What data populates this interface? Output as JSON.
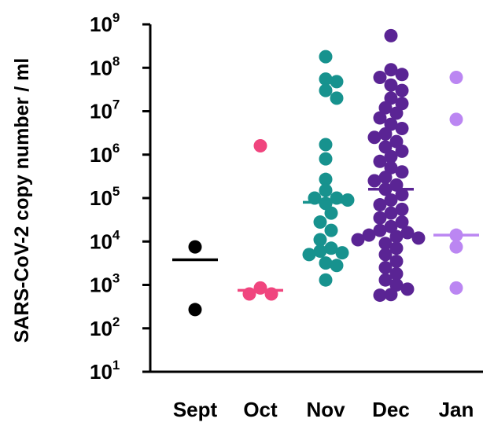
{
  "chart_data": {
    "type": "scatter",
    "title": "",
    "xlabel": "",
    "ylabel": "SARS-CoV-2 copy number / ml",
    "y_scale": "log10",
    "ylim": [
      10,
      1000000000
    ],
    "y_ticks": [
      {
        "value": 10,
        "base": "10",
        "exp": "1"
      },
      {
        "value": 100,
        "base": "10",
        "exp": "2"
      },
      {
        "value": 1000,
        "base": "10",
        "exp": "3"
      },
      {
        "value": 10000,
        "base": "10",
        "exp": "4"
      },
      {
        "value": 100000,
        "base": "10",
        "exp": "5"
      },
      {
        "value": 1000000,
        "base": "10",
        "exp": "6"
      },
      {
        "value": 10000000,
        "base": "10",
        "exp": "7"
      },
      {
        "value": 100000000,
        "base": "10",
        "exp": "8"
      },
      {
        "value": 1000000000,
        "base": "10",
        "exp": "9"
      }
    ],
    "categories": [
      "Sept",
      "Oct",
      "Nov",
      "Dec",
      "Jan"
    ],
    "series": [
      {
        "category": "Sept",
        "color": "#000000",
        "median": 3800,
        "points": [
          7500,
          270
        ]
      },
      {
        "category": "Oct",
        "color": "#f0457e",
        "median": 750,
        "points": [
          1600000,
          850,
          620,
          620
        ]
      },
      {
        "category": "Nov",
        "color": "#17928e",
        "median": 80000,
        "points": [
          180000000,
          55000000,
          48000000,
          30000000,
          20000000,
          1700000,
          800000,
          270000,
          150000,
          100000,
          100000,
          90000,
          75000,
          45000,
          28000,
          18000,
          11000,
          7000,
          6000,
          5500,
          5000,
          3200,
          2800,
          1300
        ]
      },
      {
        "category": "Dec",
        "color": "#5a2494",
        "median": 160000,
        "points": [
          550000000,
          90000000,
          70000000,
          60000000,
          40000000,
          30000000,
          20000000,
          15000000,
          12000000,
          9000000,
          7000000,
          5000000,
          4000000,
          3000000,
          2500000,
          2000000,
          1500000,
          1200000,
          900000,
          700000,
          500000,
          400000,
          300000,
          250000,
          200000,
          160000,
          120000,
          90000,
          70000,
          55000,
          45000,
          35000,
          28000,
          22000,
          18000,
          16000,
          14000,
          13000,
          12000,
          11000,
          9000,
          7000,
          5000,
          3500,
          2500,
          1800,
          1300,
          1000,
          800,
          600,
          580
        ]
      },
      {
        "category": "Jan",
        "color": "#bb86f2",
        "median": 14000,
        "points": [
          60000000,
          6500000,
          14000,
          7500,
          850
        ]
      }
    ],
    "grid": false,
    "legend": "none"
  }
}
